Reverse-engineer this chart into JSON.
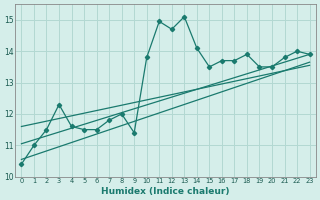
{
  "x_data": [
    0,
    1,
    2,
    3,
    4,
    5,
    6,
    7,
    8,
    9,
    10,
    11,
    12,
    13,
    14,
    15,
    16,
    17,
    18,
    19,
    20,
    21,
    22,
    23
  ],
  "y_data": [
    10.4,
    11.0,
    11.5,
    12.3,
    11.6,
    11.5,
    11.5,
    11.8,
    12.0,
    11.4,
    13.8,
    14.95,
    14.7,
    15.1,
    14.1,
    13.5,
    13.7,
    13.7,
    13.9,
    13.5,
    13.5,
    13.8,
    14.0,
    13.9
  ],
  "line_color": "#1a7a6e",
  "bg_color": "#d5eeea",
  "grid_color": "#b2d8d2",
  "xlabel": "Humidex (Indice chaleur)",
  "ylim": [
    10,
    15.5
  ],
  "xlim": [
    -0.5,
    23.5
  ],
  "yticks": [
    10,
    11,
    12,
    13,
    14,
    15
  ],
  "xticks": [
    0,
    1,
    2,
    3,
    4,
    5,
    6,
    7,
    8,
    9,
    10,
    11,
    12,
    13,
    14,
    15,
    16,
    17,
    18,
    19,
    20,
    21,
    22,
    23
  ],
  "regression_lines": [
    {
      "x0": 0,
      "y0": 10.55,
      "x1": 23,
      "y1": 13.65
    },
    {
      "x0": 0,
      "y0": 11.05,
      "x1": 23,
      "y1": 13.9
    },
    {
      "x0": 0,
      "y0": 11.6,
      "x1": 23,
      "y1": 13.55
    }
  ]
}
